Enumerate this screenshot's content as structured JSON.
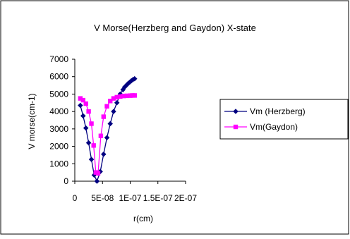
{
  "chart_data": {
    "type": "scatter",
    "title": "V Morse(Herzberg and Gaydon) X-state",
    "xlabel": "r(cm)",
    "ylabel": "V morse(cm-1)",
    "xlim": [
      0,
      2e-07
    ],
    "ylim": [
      0,
      7000
    ],
    "x_ticks": [
      0,
      5e-08,
      1e-07,
      1.5e-07,
      2e-07
    ],
    "x_tick_labels": [
      "0",
      "5E-08",
      "1E-07",
      "1.5E-07",
      "2E-07"
    ],
    "y_ticks": [
      0,
      1000,
      2000,
      3000,
      4000,
      5000,
      6000,
      7000
    ],
    "y_tick_labels": [
      "0",
      "1000",
      "2000",
      "3000",
      "4000",
      "5000",
      "6000",
      "7000"
    ],
    "grid": false,
    "legend_position": "right",
    "series": [
      {
        "name": "Vm (Herzberg)",
        "color": "#000080",
        "marker": "diamond",
        "points": [
          [
            1e-08,
            4350
          ],
          [
            1.5e-08,
            3750
          ],
          [
            2e-08,
            3050
          ],
          [
            2.5e-08,
            2200
          ],
          [
            3e-08,
            1250
          ],
          [
            3.5e-08,
            350
          ],
          [
            4e-08,
            0
          ],
          [
            4.6e-08,
            550
          ],
          [
            5.2e-08,
            1550
          ],
          [
            5.8e-08,
            2500
          ],
          [
            6.4e-08,
            3300
          ],
          [
            7e-08,
            4000
          ],
          [
            7.6e-08,
            4500
          ],
          [
            8.2e-08,
            5000
          ],
          [
            8.7e-08,
            5250
          ],
          [
            9e-08,
            5400
          ],
          [
            9.3e-08,
            5500
          ],
          [
            9.6e-08,
            5600
          ],
          [
            9.9e-08,
            5680
          ],
          [
            1.02e-07,
            5760
          ],
          [
            1.05e-07,
            5830
          ],
          [
            1.08e-07,
            5880
          ]
        ]
      },
      {
        "name": "Vm(Gaydon)",
        "color": "#ff00ff",
        "marker": "square",
        "points": [
          [
            1e-08,
            4750
          ],
          [
            1.5e-08,
            4650
          ],
          [
            2e-08,
            4450
          ],
          [
            2.5e-08,
            4000
          ],
          [
            3e-08,
            3300
          ],
          [
            3.4e-08,
            2050
          ],
          [
            3.8e-08,
            500
          ],
          [
            4.2e-08,
            450
          ],
          [
            4.7e-08,
            2600
          ],
          [
            5.2e-08,
            3700
          ],
          [
            5.8e-08,
            4300
          ],
          [
            6.4e-08,
            4600
          ],
          [
            7e-08,
            4750
          ],
          [
            7.6e-08,
            4820
          ],
          [
            8.2e-08,
            4860
          ],
          [
            8.8e-08,
            4890
          ],
          [
            9.4e-08,
            4900
          ],
          [
            1e-07,
            4910
          ],
          [
            1.04e-07,
            4920
          ],
          [
            1.08e-07,
            4920
          ]
        ]
      }
    ]
  }
}
